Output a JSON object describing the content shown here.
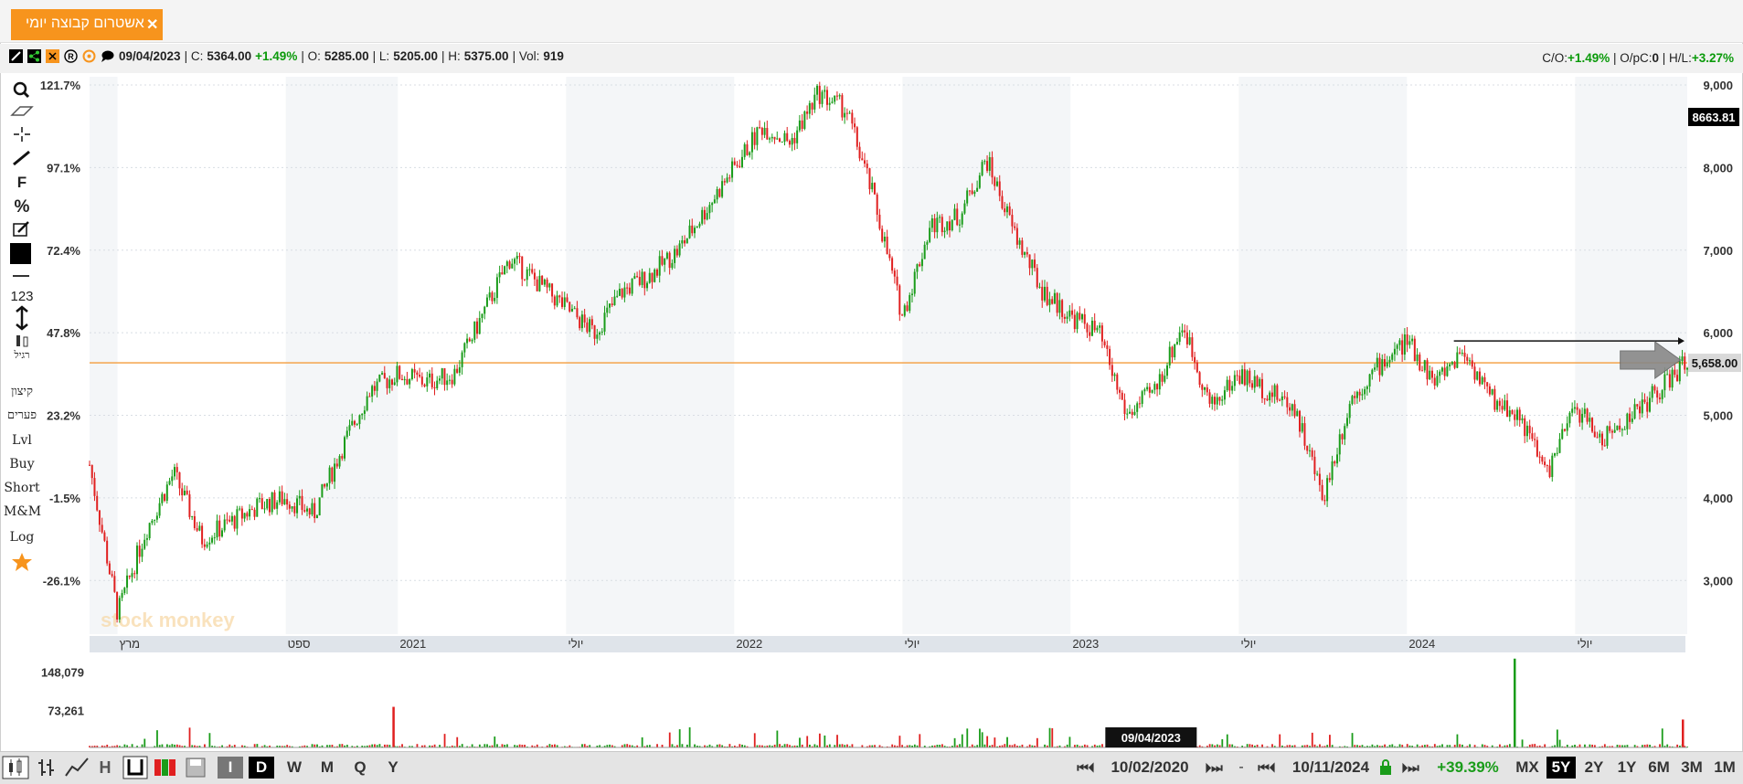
{
  "tab": {
    "title": "אשטרום קבוצה יומי",
    "close": "✕"
  },
  "info": {
    "date": "09/04/2023",
    "c_label": "| C:",
    "c_val": "5364.00",
    "c_chg": "+1.49%",
    "o_label": "| O:",
    "o_val": "5285.00",
    "l_label": "| L:",
    "l_val": "5205.00",
    "h_label": "| H:",
    "h_val": "5375.00",
    "vol_label": "| Vol:",
    "vol_val": "919",
    "co_label": "C/O:",
    "co_val": "+1.49%",
    "opc_label": "| O/pC:",
    "opc_val": "0",
    "hl_label": "| H/L:",
    "hl_val": "+3.27%"
  },
  "sidebar": {
    "items": [
      "F",
      "%",
      "123",
      "רגיל",
      "קיצון",
      "פערים",
      "Lvl",
      "Buy",
      "Short",
      "M&M",
      "Log"
    ]
  },
  "watermark": "stock monkey",
  "chart_data": {
    "type": "candlestick",
    "x_range": [
      "2020-02",
      "2024-11"
    ],
    "x_ticks": [
      {
        "label": "מרץ",
        "date": "2020-03"
      },
      {
        "label": "ספט",
        "date": "2020-09"
      },
      {
        "label": "2021",
        "date": "2021-01"
      },
      {
        "label": "יולי",
        "date": "2021-07"
      },
      {
        "label": "2022",
        "date": "2022-01"
      },
      {
        "label": "יולי",
        "date": "2022-07"
      },
      {
        "label": "2023",
        "date": "2023-01"
      },
      {
        "label": "יולי",
        "date": "2023-07"
      },
      {
        "label": "2024",
        "date": "2024-01"
      },
      {
        "label": "יולי",
        "date": "2024-07"
      }
    ],
    "y_right_ticks": [
      "9,000",
      "8,000",
      "7,000",
      "6,000",
      "5,000",
      "4,000",
      "3,000"
    ],
    "y_left_ticks": [
      "121.7%",
      "97.1%",
      "72.4%",
      "47.8%",
      "23.2%",
      "-1.5%",
      "-26.1%"
    ],
    "ylim": [
      2350,
      9100
    ],
    "last_price_label": "5,658.00",
    "last_price": 5658,
    "hline_label": "8663.81",
    "series": [
      {
        "date": "2020-02",
        "value": 4400
      },
      {
        "date": "2020-03",
        "value": 2600
      },
      {
        "date": "2020-04",
        "value": 3600
      },
      {
        "date": "2020-05",
        "value": 4300
      },
      {
        "date": "2020-06",
        "value": 3500
      },
      {
        "date": "2020-07",
        "value": 3700
      },
      {
        "date": "2020-08",
        "value": 3900
      },
      {
        "date": "2020-09",
        "value": 4000
      },
      {
        "date": "2020-10",
        "value": 3800
      },
      {
        "date": "2020-11",
        "value": 4600
      },
      {
        "date": "2020-12",
        "value": 5300
      },
      {
        "date": "2021-01",
        "value": 5500
      },
      {
        "date": "2021-02",
        "value": 5400
      },
      {
        "date": "2021-03",
        "value": 5500
      },
      {
        "date": "2021-04",
        "value": 6200
      },
      {
        "date": "2021-05",
        "value": 6900
      },
      {
        "date": "2021-06",
        "value": 6600
      },
      {
        "date": "2021-07",
        "value": 6300
      },
      {
        "date": "2021-08",
        "value": 6000
      },
      {
        "date": "2021-09",
        "value": 6500
      },
      {
        "date": "2021-10",
        "value": 6700
      },
      {
        "date": "2021-11",
        "value": 7000
      },
      {
        "date": "2021-12",
        "value": 7500
      },
      {
        "date": "2022-01",
        "value": 8000
      },
      {
        "date": "2022-02",
        "value": 8500
      },
      {
        "date": "2022-03",
        "value": 8300
      },
      {
        "date": "2022-04",
        "value": 8900
      },
      {
        "date": "2022-05",
        "value": 8700
      },
      {
        "date": "2022-06",
        "value": 7600
      },
      {
        "date": "2022-07",
        "value": 6200
      },
      {
        "date": "2022-08",
        "value": 7300
      },
      {
        "date": "2022-09",
        "value": 7400
      },
      {
        "date": "2022-10",
        "value": 8100
      },
      {
        "date": "2022-11",
        "value": 7200
      },
      {
        "date": "2022-12",
        "value": 6500
      },
      {
        "date": "2023-01",
        "value": 6200
      },
      {
        "date": "2023-02",
        "value": 6000
      },
      {
        "date": "2023-03",
        "value": 5000
      },
      {
        "date": "2023-04",
        "value": 5300
      },
      {
        "date": "2023-05",
        "value": 6100
      },
      {
        "date": "2023-06",
        "value": 5100
      },
      {
        "date": "2023-07",
        "value": 5500
      },
      {
        "date": "2023-08",
        "value": 5300
      },
      {
        "date": "2023-09",
        "value": 5100
      },
      {
        "date": "2023-10",
        "value": 4000
      },
      {
        "date": "2023-11",
        "value": 5200
      },
      {
        "date": "2023-12",
        "value": 5600
      },
      {
        "date": "2024-01",
        "value": 5900
      },
      {
        "date": "2024-02",
        "value": 5400
      },
      {
        "date": "2024-03",
        "value": 5800
      },
      {
        "date": "2024-04",
        "value": 5200
      },
      {
        "date": "2024-05",
        "value": 5000
      },
      {
        "date": "2024-06",
        "value": 4300
      },
      {
        "date": "2024-07",
        "value": 5100
      },
      {
        "date": "2024-08",
        "value": 4700
      },
      {
        "date": "2024-09",
        "value": 5000
      },
      {
        "date": "2024-10",
        "value": 5300
      },
      {
        "date": "2024-11",
        "value": 5658
      }
    ],
    "volume_ticks": [
      "148,079",
      "73,261"
    ],
    "volume_max": 180000,
    "volume_spikes": [
      {
        "date": "2021-01",
        "value": 80000
      },
      {
        "date": "2024-05",
        "value": 175000
      },
      {
        "date": "2024-11",
        "value": 55000
      }
    ],
    "crosshair_date": "09/04/2023"
  },
  "bottom": {
    "from_date": "10/02/2020",
    "to_date": "10/11/2024",
    "change": "+39.39%",
    "intervals": [
      "I",
      "D",
      "W",
      "M",
      "Q",
      "Y"
    ],
    "ranges": [
      "MX",
      "5Y",
      "2Y",
      "1Y",
      "6M",
      "3M",
      "1M"
    ],
    "selected_range": "5Y",
    "selected_interval": "D",
    "chart_types": [
      "H"
    ]
  },
  "colors": {
    "accent": "#f7941d",
    "up": "#1a9c1a",
    "down": "#e02020",
    "hline": "#f39c3c"
  }
}
